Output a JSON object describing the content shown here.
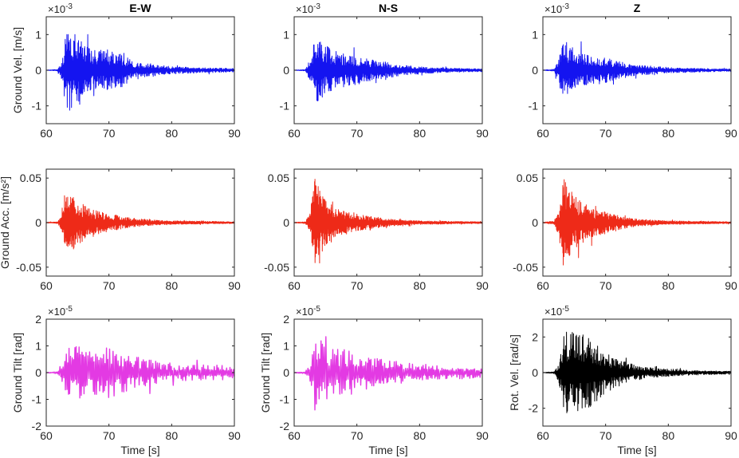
{
  "chart_data": {
    "type": "line",
    "column_titles": [
      "E-W",
      "N-S",
      "Z"
    ],
    "xlabel": "Time [s]",
    "xlim": [
      60,
      90
    ],
    "xticks": [
      60,
      70,
      80,
      90
    ],
    "grid": false,
    "envelope_times": [
      60,
      61.8,
      62.5,
      63.3,
      65,
      67,
      70,
      72,
      74,
      77,
      80,
      85,
      90
    ],
    "panels": [
      {
        "row": 0,
        "col": 0,
        "ylabel": "Ground Vel. [m/s]",
        "exponent": "-3",
        "ylim": [
          -1.5,
          1.5
        ],
        "yticks": [
          -1,
          0,
          1
        ],
        "color": "#1414f0",
        "series": "E-W ground velocity",
        "peak_max": 1.0,
        "peak_min": -1.45,
        "onset": 61.8,
        "envelope": [
          0.005,
          0.02,
          0.3,
          1.2,
          0.95,
          0.6,
          0.55,
          0.5,
          0.2,
          0.18,
          0.1,
          0.07,
          0.05
        ]
      },
      {
        "row": 0,
        "col": 1,
        "ylabel": "",
        "exponent": "-3",
        "ylim": [
          -1.5,
          1.5
        ],
        "yticks": [
          -1,
          0,
          1
        ],
        "color": "#1414f0",
        "series": "N-S ground velocity",
        "peak_max": 1.0,
        "peak_min": -1.05,
        "onset": 62.0,
        "envelope": [
          0.005,
          0.02,
          0.3,
          0.95,
          0.7,
          0.5,
          0.4,
          0.3,
          0.25,
          0.15,
          0.1,
          0.06,
          0.04
        ]
      },
      {
        "row": 0,
        "col": 2,
        "ylabel": "",
        "exponent": "-3",
        "ylim": [
          -1.5,
          1.5
        ],
        "yticks": [
          -1,
          0,
          1
        ],
        "color": "#1414f0",
        "series": "Z ground velocity",
        "peak_max": 0.8,
        "peak_min": -1.1,
        "onset": 61.8,
        "envelope": [
          0.005,
          0.03,
          0.35,
          0.85,
          0.6,
          0.45,
          0.35,
          0.25,
          0.18,
          0.12,
          0.08,
          0.05,
          0.04
        ]
      },
      {
        "row": 1,
        "col": 0,
        "ylabel": "Ground Acc. [m/s²]",
        "exponent": "",
        "ylim": [
          -0.06,
          0.06
        ],
        "yticks": [
          -0.05,
          0,
          0.05
        ],
        "color": "#ee2a18",
        "series": "E-W ground acceleration",
        "peak_max": 0.032,
        "peak_min": -0.043,
        "onset": 62.0,
        "envelope": [
          0.0003,
          0.001,
          0.01,
          0.035,
          0.025,
          0.015,
          0.01,
          0.007,
          0.005,
          0.003,
          0.002,
          0.0015,
          0.001
        ]
      },
      {
        "row": 1,
        "col": 1,
        "ylabel": "",
        "exponent": "",
        "ylim": [
          -0.06,
          0.06
        ],
        "yticks": [
          -0.05,
          0,
          0.05
        ],
        "color": "#ee2a18",
        "series": "N-S ground acceleration",
        "peak_max": 0.052,
        "peak_min": -0.06,
        "onset": 62.0,
        "envelope": [
          0.0003,
          0.001,
          0.01,
          0.05,
          0.025,
          0.015,
          0.01,
          0.007,
          0.005,
          0.003,
          0.002,
          0.0015,
          0.001
        ]
      },
      {
        "row": 1,
        "col": 2,
        "ylabel": "",
        "exponent": "",
        "ylim": [
          -0.06,
          0.06
        ],
        "yticks": [
          -0.05,
          0,
          0.05
        ],
        "color": "#ee2a18",
        "series": "Z ground acceleration",
        "peak_max": 0.057,
        "peak_min": -0.053,
        "onset": 61.8,
        "envelope": [
          0.0003,
          0.002,
          0.015,
          0.05,
          0.03,
          0.018,
          0.012,
          0.008,
          0.005,
          0.003,
          0.002,
          0.0015,
          0.001
        ]
      },
      {
        "row": 2,
        "col": 0,
        "ylabel": "Ground Tilt [rad]",
        "exponent": "-5",
        "ylim": [
          -2,
          2
        ],
        "yticks": [
          -2,
          -1,
          0,
          1,
          2
        ],
        "color": "#e33ae3",
        "series": "E-W ground tilt",
        "peak_max": 1.22,
        "peak_min": -1.15,
        "onset": 62.0,
        "envelope": [
          0.005,
          0.05,
          0.4,
          0.9,
          1.0,
          0.8,
          1.0,
          0.8,
          0.6,
          0.5,
          0.3,
          0.3,
          0.3
        ]
      },
      {
        "row": 2,
        "col": 1,
        "ylabel": "Ground Tilt [rad]",
        "exponent": "-5",
        "ylim": [
          -2,
          2
        ],
        "yticks": [
          -2,
          -1,
          0,
          1,
          2
        ],
        "color": "#e33ae3",
        "series": "N-S ground tilt",
        "peak_max": 1.65,
        "peak_min": -1.6,
        "onset": 62.0,
        "envelope": [
          0.005,
          0.05,
          0.3,
          1.6,
          1.0,
          0.9,
          0.8,
          0.6,
          0.5,
          0.4,
          0.3,
          0.25,
          0.2
        ]
      },
      {
        "row": 2,
        "col": 2,
        "ylabel": "Rot. Vel. [rad/s]",
        "exponent": "-5",
        "ylim": [
          -3,
          3
        ],
        "yticks": [
          -2,
          0,
          2
        ],
        "color": "#000000",
        "series": "Z rotational velocity",
        "peak_max": 2.7,
        "peak_min": -3.0,
        "onset": 62.0,
        "envelope": [
          0.01,
          0.05,
          0.5,
          2.3,
          2.3,
          2.2,
          1.1,
          0.8,
          0.5,
          0.3,
          0.2,
          0.12,
          0.08
        ]
      }
    ]
  }
}
